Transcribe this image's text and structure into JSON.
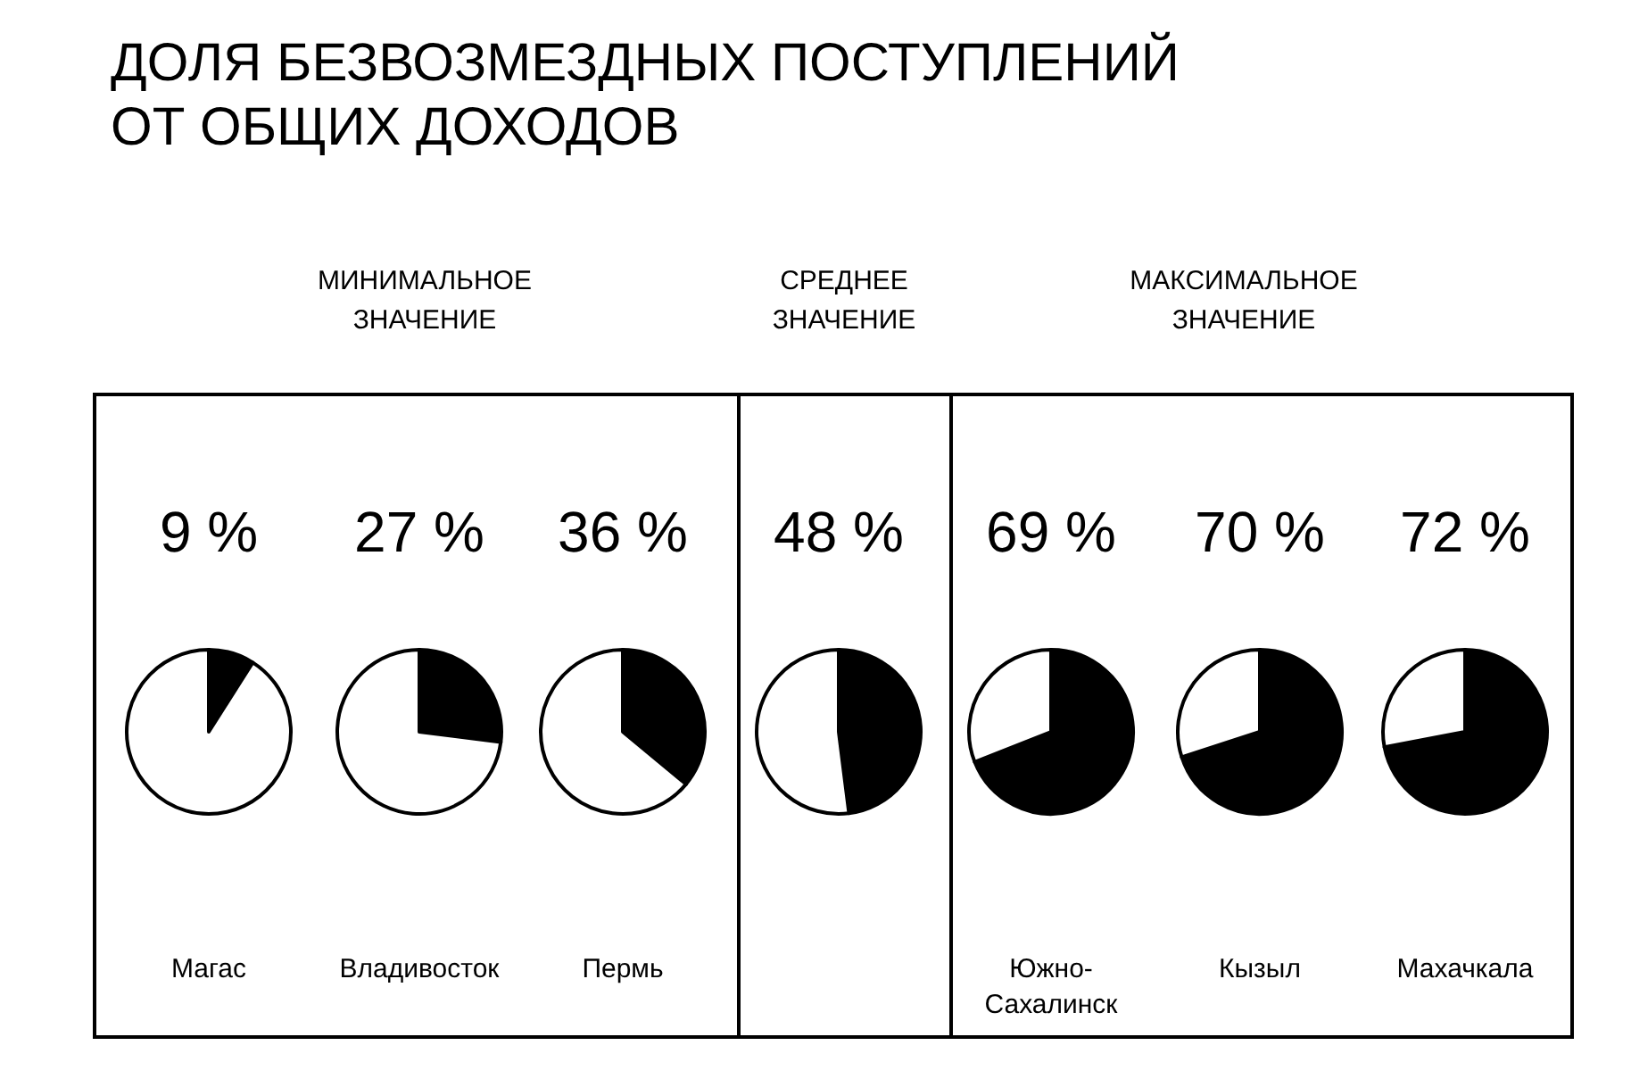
{
  "chart_data": [
    {
      "type": "other",
      "title": "ДОЛЯ БЕЗВОЗМЕЗДНЫХ ПОСТУПЛЕНИЙ ОТ ОБЩИХ ДОХОДОВ",
      "annotations": [
        "МИНИМАЛЬНОЕ ЗНАЧЕНИЕ",
        "СРЕДНЕЕ ЗНАЧЕНИЕ",
        "МАКСИМАЛЬНОЕ ЗНАЧЕНИЕ"
      ]
    },
    {
      "type": "pie",
      "title": "Магас",
      "categories": [
        null,
        null
      ],
      "values": [
        9,
        91
      ],
      "colors": [
        "#000000",
        "#ffffff"
      ],
      "value_labels": [
        "9 %",
        null
      ]
    },
    {
      "type": "pie",
      "title": "Владивосток",
      "categories": [
        null,
        null
      ],
      "values": [
        27,
        73
      ],
      "colors": [
        "#000000",
        "#ffffff"
      ],
      "value_labels": [
        "27 %",
        null
      ]
    },
    {
      "type": "pie",
      "title": "Пермь",
      "categories": [
        null,
        null
      ],
      "values": [
        36,
        64
      ],
      "colors": [
        "#000000",
        "#ffffff"
      ],
      "value_labels": [
        "36 %",
        null
      ]
    },
    {
      "type": "pie",
      "categories": [
        null,
        null
      ],
      "values": [
        48,
        52
      ],
      "colors": [
        "#000000",
        "#ffffff"
      ],
      "value_labels": [
        "48 %",
        null
      ]
    },
    {
      "type": "pie",
      "title": "Южно-Сахалинск",
      "categories": [
        null,
        null
      ],
      "values": [
        69,
        31
      ],
      "colors": [
        "#000000",
        "#ffffff"
      ],
      "value_labels": [
        "69 %",
        null
      ]
    },
    {
      "type": "pie",
      "title": "Кызыл",
      "categories": [
        null,
        null
      ],
      "values": [
        70,
        30
      ],
      "colors": [
        "#000000",
        "#ffffff"
      ],
      "value_labels": [
        "70 %",
        null
      ]
    },
    {
      "type": "pie",
      "title": "Махачкала",
      "categories": [
        null,
        null
      ],
      "values": [
        72,
        28
      ],
      "colors": [
        "#000000",
        "#ffffff"
      ],
      "value_labels": [
        "72 %",
        null
      ]
    }
  ]
}
